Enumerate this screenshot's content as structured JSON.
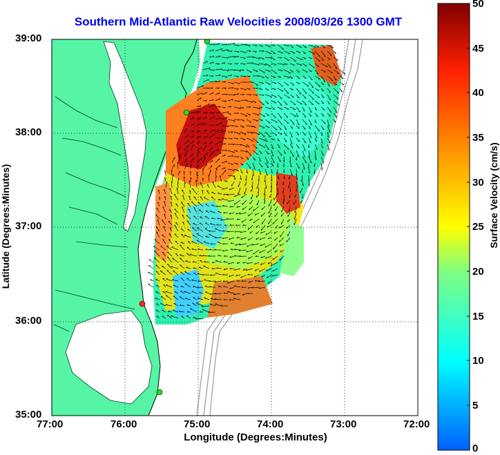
{
  "title": "Southern Mid-Atlantic Raw Velocities 2008/03/26 1300 GMT",
  "xlabel": "Longitude (Degrees:Minutes)",
  "ylabel": "Latitude (Degrees:Minutes)",
  "colorbar_label": "Surface Velocity (cm/s)",
  "colors": {
    "land": "#55f5a5",
    "ocean": "#ffffff",
    "title": "#0000ee",
    "station": "#22dd22",
    "station_red": "#ff2222"
  },
  "chart_data": {
    "type": "heatmap",
    "title": "Southern Mid-Atlantic Raw Velocities 2008/03/26 1300 GMT",
    "xlabel": "Longitude (Degrees:Minutes)",
    "ylabel": "Latitude (Degrees:Minutes)",
    "x_ticks": [
      "77:00",
      "76:00",
      "75:00",
      "74:00",
      "73:00",
      "72:00"
    ],
    "y_ticks": [
      "39:00",
      "38:00",
      "37:00",
      "36:00",
      "35:00"
    ],
    "xlim": [
      -77,
      -72
    ],
    "ylim": [
      35,
      39
    ],
    "grid": true,
    "colorbar": {
      "label": "Surface Velocity (cm/s)",
      "range": [
        0,
        50
      ],
      "ticks": [
        "0",
        "5",
        "10",
        "15",
        "20",
        "25",
        "30",
        "35",
        "40",
        "45",
        "50"
      ]
    },
    "stations": [
      {
        "name": "",
        "lon": -74.88,
        "lat": 38.98,
        "color": "green"
      },
      {
        "name": "",
        "lon": -75.1,
        "lat": 38.22,
        "color": "green"
      },
      {
        "name": "",
        "lon": -75.72,
        "lat": 36.18,
        "color": "red"
      },
      {
        "name": "",
        "lon": -75.48,
        "lat": 35.23,
        "color": "green"
      }
    ]
  }
}
